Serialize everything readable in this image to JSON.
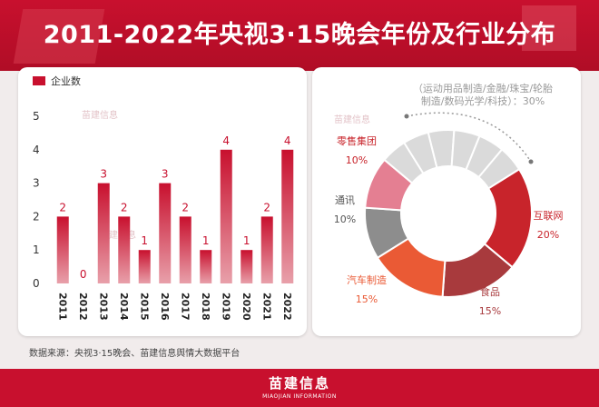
{
  "title": "2011-2022年央视3·15晚会年份及行业分布",
  "watermark": "苗建信息",
  "source_note": "数据来源：央视3·15晚会、苗建信息舆情大数据平台",
  "footer": {
    "brand": "苗建信息",
    "brand_en": "MIAOJIAN INFORMATION"
  },
  "colors": {
    "bar": "#c8102e",
    "accent": "#c8102e"
  },
  "chart_data": [
    {
      "type": "bar",
      "legend": "企业数",
      "categories": [
        "2011",
        "2012",
        "2013",
        "2014",
        "2015",
        "2016",
        "2017",
        "2018",
        "2019",
        "2020",
        "2021",
        "2022"
      ],
      "values": [
        2,
        0,
        3,
        2,
        1,
        3,
        2,
        1,
        4,
        1,
        2,
        4
      ],
      "ylim": [
        0,
        5
      ],
      "yticks": [
        0,
        1,
        2,
        3,
        4,
        5
      ],
      "legend_position": "top-left"
    },
    {
      "type": "pie",
      "subtype": "donut",
      "slices": [
        {
          "name": "互联网",
          "value": 20,
          "label": "20%",
          "color": "#c8242b"
        },
        {
          "name": "食品",
          "value": 15,
          "label": "15%",
          "color": "#a83a3d"
        },
        {
          "name": "汽车制造",
          "value": 15,
          "label": "15%",
          "color": "#ea5a35"
        },
        {
          "name": "通讯",
          "value": 10,
          "label": "10%",
          "color": "#8d8d8d"
        },
        {
          "name": "零售集团",
          "value": 10,
          "label": "10%",
          "color": "#e47f92"
        },
        {
          "name": "（运动用品制造/金融/珠宝/轮胎制造/数码光学/科技）",
          "value": 30,
          "label": "30%",
          "color": "#dadada"
        }
      ],
      "other_label_line1": "（运动用品制造/金融/珠宝/轮胎",
      "other_label_line2": "制造/数码光学/科技）：30%"
    }
  ]
}
